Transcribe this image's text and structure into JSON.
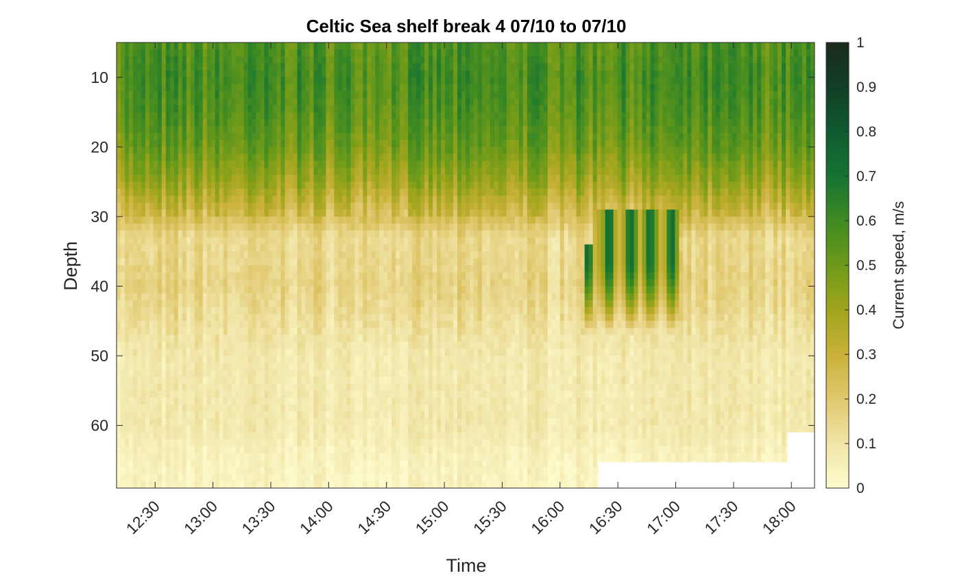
{
  "chart_data": {
    "type": "heatmap",
    "title": "Celtic Sea shelf break 4 07/10 to 07/10",
    "xlabel": "Time",
    "ylabel": "Depth",
    "x_range": [
      "12:10",
      "18:12"
    ],
    "y_range": [
      5,
      69
    ],
    "y_reversed": true,
    "x_ticks": [
      "12:30",
      "13:00",
      "13:30",
      "14:00",
      "14:30",
      "15:00",
      "15:30",
      "16:00",
      "16:30",
      "17:00",
      "17:30",
      "18:00"
    ],
    "y_ticks": [
      10,
      20,
      30,
      40,
      50,
      60
    ],
    "colorbar": {
      "label": "Current speed, m/s",
      "range": [
        0,
        1
      ],
      "ticks": [
        "0",
        "0.1",
        "0.2",
        "0.3",
        "0.4",
        "0.5",
        "0.6",
        "0.7",
        "0.8",
        "0.9",
        "1"
      ],
      "colormap": [
        "#fdfbcd",
        "#f1e5a8",
        "#e0c86e",
        "#c9b13a",
        "#a0a51c",
        "#6d9a1a",
        "#3f8a22",
        "#157332",
        "#0f5a30",
        "#123f26",
        "#1a2a1a"
      ]
    },
    "speed_profile": [
      {
        "depth": 5,
        "speed": 0.55
      },
      {
        "depth": 10,
        "speed": 0.58
      },
      {
        "depth": 15,
        "speed": 0.55
      },
      {
        "depth": 20,
        "speed": 0.5
      },
      {
        "depth": 25,
        "speed": 0.4
      },
      {
        "depth": 30,
        "speed": 0.25
      },
      {
        "depth": 33,
        "speed": 0.14
      },
      {
        "depth": 40,
        "speed": 0.16
      },
      {
        "depth": 45,
        "speed": 0.12
      },
      {
        "depth": 50,
        "speed": 0.08
      },
      {
        "depth": 60,
        "speed": 0.08
      },
      {
        "depth": 65,
        "speed": 0.04
      },
      {
        "depth": 69,
        "speed": 0.03
      }
    ],
    "high_speed_patch": {
      "time_start": "16:12",
      "time_end": "17:02",
      "depth_top": 27,
      "depth_bottom": 48,
      "max_speed": 0.72
    },
    "no_data_regions": [
      {
        "time_start": "16:20",
        "time_end": "18:12",
        "depth_top": 65.3
      },
      {
        "time_start": "17:58",
        "time_end": "18:12",
        "depth_top": 61
      }
    ]
  }
}
